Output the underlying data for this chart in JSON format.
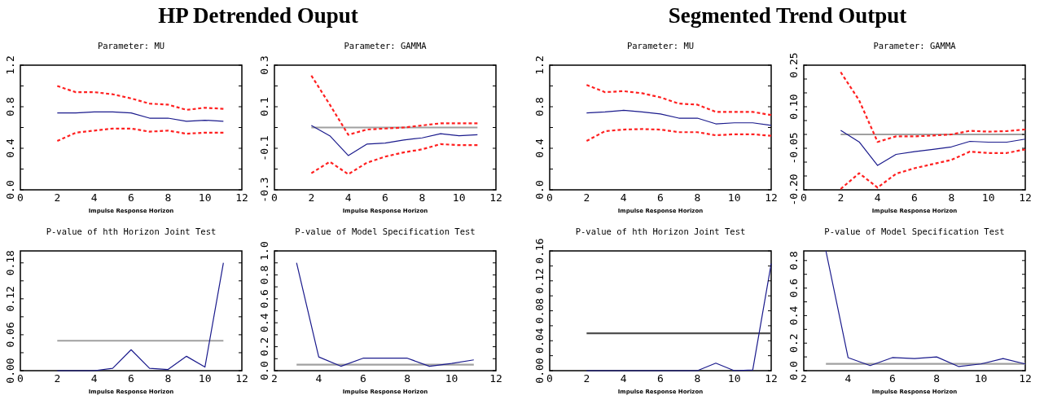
{
  "chart_data": [
    {
      "type": "line",
      "title": "Parameter: MU",
      "xlabel": "Impulse Response Horizon",
      "annotations": [
        "HP Detrended Ouput"
      ],
      "xlim": [
        0,
        12
      ],
      "xticks": [
        0,
        2,
        4,
        6,
        8,
        10,
        12
      ],
      "ylim": [
        0,
        1.2
      ],
      "yticks": [
        {
          "value": 0,
          "label": "0.0"
        },
        {
          "value": 0.2,
          "label": null
        },
        {
          "value": 0.4,
          "label": "0.4"
        },
        {
          "value": 0.6,
          "label": null
        },
        {
          "value": 0.8,
          "label": "0.8"
        },
        {
          "value": 1.0,
          "label": null
        },
        {
          "value": 1.2,
          "label": "1.2"
        }
      ],
      "series": [
        {
          "color": "#ff2020",
          "line_style": "dashed",
          "x": [
            2,
            3,
            4,
            5,
            6,
            7,
            8,
            9,
            10,
            11
          ],
          "values": [
            1.0,
            0.94,
            0.94,
            0.92,
            0.88,
            0.83,
            0.82,
            0.77,
            0.79,
            0.78
          ]
        },
        {
          "color": "#ff2020",
          "line_style": "dashed",
          "x": [
            2,
            3,
            4,
            5,
            6,
            7,
            8,
            9,
            10,
            11
          ],
          "values": [
            0.47,
            0.55,
            0.57,
            0.59,
            0.59,
            0.56,
            0.57,
            0.54,
            0.55,
            0.55
          ]
        },
        {
          "color": "#1a1a8c",
          "line_style": "solid",
          "x": [
            2,
            3,
            4,
            5,
            6,
            7,
            8,
            9,
            10,
            11
          ],
          "values": [
            0.74,
            0.74,
            0.75,
            0.75,
            0.74,
            0.69,
            0.69,
            0.66,
            0.67,
            0.66
          ]
        }
      ]
    },
    {
      "type": "line",
      "title": "Parameter: GAMMA",
      "xlabel": "Impulse Response Horizon",
      "xlim": [
        0,
        12
      ],
      "xticks": [
        0,
        2,
        4,
        6,
        8,
        10,
        12
      ],
      "ylim": [
        -0.3,
        0.3
      ],
      "yticks": [
        {
          "value": -0.3,
          "label": "-0.3"
        },
        {
          "value": -0.2,
          "label": null
        },
        {
          "value": -0.1,
          "label": "-0.1"
        },
        {
          "value": 0,
          "label": null
        },
        {
          "value": 0.1,
          "label": "0.1"
        },
        {
          "value": 0.2,
          "label": null
        },
        {
          "value": 0.3,
          "label": "0.3"
        }
      ],
      "series": [
        {
          "color": "#a0a0a0",
          "line_style": "solid",
          "x": [
            2,
            11
          ],
          "values": [
            0,
            0
          ]
        },
        {
          "color": "#ff2020",
          "line_style": "dashed",
          "x": [
            2,
            3,
            4,
            5,
            6,
            7,
            8,
            9,
            10,
            11
          ],
          "values": [
            0.25,
            0.11,
            -0.035,
            -0.01,
            -0.005,
            0.0,
            0.01,
            0.02,
            0.02,
            0.02
          ]
        },
        {
          "color": "#ff2020",
          "line_style": "dashed",
          "x": [
            2,
            3,
            4,
            5,
            6,
            7,
            8,
            9,
            10,
            11
          ],
          "values": [
            -0.22,
            -0.165,
            -0.225,
            -0.17,
            -0.14,
            -0.12,
            -0.105,
            -0.08,
            -0.085,
            -0.085
          ]
        },
        {
          "color": "#1a1a8c",
          "line_style": "solid",
          "x": [
            2,
            3,
            4,
            5,
            6,
            7,
            8,
            9,
            10,
            11
          ],
          "values": [
            0.01,
            -0.04,
            -0.135,
            -0.08,
            -0.075,
            -0.06,
            -0.05,
            -0.03,
            -0.04,
            -0.035
          ]
        }
      ]
    },
    {
      "type": "line",
      "title": "Parameter: MU",
      "xlabel": "Impulse Response Horizon",
      "annotations": [
        "Segmented Trend Output"
      ],
      "xlim": [
        0,
        12
      ],
      "xticks": [
        0,
        2,
        4,
        6,
        8,
        10,
        12
      ],
      "ylim": [
        0,
        1.2
      ],
      "yticks": [
        {
          "value": 0,
          "label": "0.0"
        },
        {
          "value": 0.2,
          "label": null
        },
        {
          "value": 0.4,
          "label": "0.4"
        },
        {
          "value": 0.6,
          "label": null
        },
        {
          "value": 0.8,
          "label": "0.8"
        },
        {
          "value": 1.0,
          "label": null
        },
        {
          "value": 1.2,
          "label": "1.2"
        }
      ],
      "series": [
        {
          "color": "#ff2020",
          "line_style": "dashed",
          "x": [
            2,
            3,
            4,
            5,
            6,
            7,
            8,
            9,
            10,
            11,
            12
          ],
          "values": [
            1.01,
            0.94,
            0.95,
            0.93,
            0.89,
            0.83,
            0.82,
            0.75,
            0.75,
            0.75,
            0.72
          ]
        },
        {
          "color": "#ff2020",
          "line_style": "dashed",
          "x": [
            2,
            3,
            4,
            5,
            6,
            7,
            8,
            9,
            10,
            11,
            12
          ],
          "values": [
            0.47,
            0.565,
            0.58,
            0.585,
            0.58,
            0.555,
            0.555,
            0.525,
            0.535,
            0.535,
            0.52
          ]
        },
        {
          "color": "#1a1a8c",
          "line_style": "solid",
          "x": [
            2,
            3,
            4,
            5,
            6,
            7,
            8,
            9,
            10,
            11,
            12
          ],
          "values": [
            0.74,
            0.75,
            0.765,
            0.75,
            0.73,
            0.69,
            0.69,
            0.635,
            0.645,
            0.645,
            0.62
          ]
        }
      ]
    },
    {
      "type": "line",
      "title": "Parameter: GAMMA",
      "xlabel": "Impulse Response Horizon",
      "xlim": [
        0,
        12
      ],
      "xticks": [
        0,
        2,
        4,
        6,
        8,
        10,
        12
      ],
      "ylim": [
        -0.2,
        0.25
      ],
      "yticks": [
        {
          "value": -0.2,
          "label": "-0.20"
        },
        {
          "value": -0.15,
          "label": null
        },
        {
          "value": -0.1,
          "label": null
        },
        {
          "value": -0.05,
          "label": "-0.05"
        },
        {
          "value": 0,
          "label": null
        },
        {
          "value": 0.05,
          "label": null
        },
        {
          "value": 0.1,
          "label": "0.10"
        },
        {
          "value": 0.15,
          "label": null
        },
        {
          "value": 0.2,
          "label": null
        },
        {
          "value": 0.25,
          "label": "0.25"
        }
      ],
      "series": [
        {
          "color": "#a0a0a0",
          "line_style": "solid",
          "x": [
            2,
            12
          ],
          "values": [
            0,
            0
          ]
        },
        {
          "color": "#ff2020",
          "line_style": "dashed",
          "x": [
            2,
            3,
            4,
            5,
            6,
            7,
            8,
            9,
            10,
            11,
            12
          ],
          "values": [
            0.225,
            0.123,
            -0.027,
            -0.007,
            -0.007,
            -0.004,
            0.0,
            0.013,
            0.01,
            0.012,
            0.018
          ]
        },
        {
          "color": "#ff2020",
          "line_style": "dashed",
          "x": [
            2,
            3,
            4,
            5,
            6,
            7,
            8,
            9,
            10,
            11,
            12
          ],
          "values": [
            -0.197,
            -0.14,
            -0.192,
            -0.142,
            -0.122,
            -0.107,
            -0.092,
            -0.062,
            -0.067,
            -0.067,
            -0.054
          ]
        },
        {
          "color": "#1a1a8c",
          "line_style": "solid",
          "x": [
            2,
            3,
            4,
            5,
            6,
            7,
            8,
            9,
            10,
            11,
            12
          ],
          "values": [
            0.015,
            -0.027,
            -0.112,
            -0.072,
            -0.062,
            -0.054,
            -0.045,
            -0.025,
            -0.028,
            -0.028,
            -0.017
          ]
        }
      ]
    },
    {
      "type": "line",
      "title": "P-value of hth Horizon Joint Test",
      "xlabel": "Impulse Response Horizon",
      "xlim": [
        0,
        12
      ],
      "xticks": [
        0,
        2,
        4,
        6,
        8,
        10,
        12
      ],
      "ylim": [
        0,
        0.2
      ],
      "yticks": [
        {
          "value": 0,
          "label": "0.00"
        },
        {
          "value": 0.03,
          "label": null
        },
        {
          "value": 0.06,
          "label": "0.06"
        },
        {
          "value": 0.09,
          "label": null
        },
        {
          "value": 0.12,
          "label": "0.12"
        },
        {
          "value": 0.15,
          "label": null
        },
        {
          "value": 0.18,
          "label": "0.18"
        }
      ],
      "series": [
        {
          "color": "#a0a0a0",
          "line_style": "solid",
          "x": [
            2,
            11
          ],
          "values": [
            0.05,
            0.05
          ]
        },
        {
          "color": "#1a1a8c",
          "line_style": "solid",
          "x": [
            2,
            3,
            4,
            5,
            6,
            7,
            8,
            9,
            10,
            11
          ],
          "values": [
            0,
            0,
            0,
            0.004,
            0.035,
            0.004,
            0.002,
            0.024,
            0.006,
            0.18
          ]
        }
      ]
    },
    {
      "type": "line",
      "title": "P-value of Model Specification Test",
      "xlabel": "Impulse Response Horizon",
      "xlim": [
        2,
        12
      ],
      "xticks": [
        2,
        4,
        6,
        8,
        10,
        12
      ],
      "ylim": [
        0,
        1
      ],
      "yticks": [
        {
          "value": 0,
          "label": "0.0"
        },
        {
          "value": 0.1,
          "label": null
        },
        {
          "value": 0.2,
          "label": "0.2"
        },
        {
          "value": 0.3,
          "label": null
        },
        {
          "value": 0.4,
          "label": "0.4"
        },
        {
          "value": 0.5,
          "label": null
        },
        {
          "value": 0.6,
          "label": "0.6"
        },
        {
          "value": 0.7,
          "label": null
        },
        {
          "value": 0.8,
          "label": "0.8"
        },
        {
          "value": 0.9,
          "label": null
        },
        {
          "value": 1.0,
          "label": "1.0"
        }
      ],
      "series": [
        {
          "color": "#a0a0a0",
          "line_style": "solid",
          "x": [
            3,
            11
          ],
          "values": [
            0.05,
            0.05
          ]
        },
        {
          "color": "#1a1a8c",
          "line_style": "solid",
          "x": [
            3,
            4,
            5,
            6,
            7,
            8,
            9,
            10,
            11
          ],
          "values": [
            0.9,
            0.115,
            0.037,
            0.104,
            0.104,
            0.104,
            0.037,
            0.06,
            0.09
          ]
        }
      ]
    },
    {
      "type": "line",
      "title": "P-value of hth Horizon Joint Test",
      "xlabel": "Impulse Response Horizon",
      "xlim": [
        0,
        12
      ],
      "xticks": [
        0,
        2,
        4,
        6,
        8,
        10,
        12
      ],
      "ylim": [
        0,
        0.16
      ],
      "yticks": [
        {
          "value": 0,
          "label": "0.00"
        },
        {
          "value": 0.02,
          "label": null
        },
        {
          "value": 0.04,
          "label": "0.04"
        },
        {
          "value": 0.06,
          "label": null
        },
        {
          "value": 0.08,
          "label": "0.08"
        },
        {
          "value": 0.1,
          "label": null
        },
        {
          "value": 0.12,
          "label": "0.12"
        },
        {
          "value": 0.14,
          "label": null
        },
        {
          "value": 0.16,
          "label": "0.16"
        }
      ],
      "series": [
        {
          "color": "#505050",
          "line_style": "solid",
          "x": [
            2,
            12
          ],
          "values": [
            0.05,
            0.05
          ]
        },
        {
          "color": "#1a1a8c",
          "line_style": "solid",
          "x": [
            2,
            3,
            4,
            5,
            6,
            7,
            8,
            9,
            10,
            11,
            12
          ],
          "values": [
            0,
            0,
            0,
            0,
            0,
            0,
            0,
            0.01,
            0,
            0.001,
            0.143
          ]
        }
      ]
    },
    {
      "type": "line",
      "title": "P-value of Model Specification Test",
      "xlabel": "Impulse Response Horizon",
      "xlim": [
        2,
        12
      ],
      "xticks": [
        2,
        4,
        6,
        8,
        10,
        12
      ],
      "ylim": [
        0,
        0.87
      ],
      "yticks": [
        {
          "value": 0,
          "label": "0.0"
        },
        {
          "value": 0.1,
          "label": null
        },
        {
          "value": 0.2,
          "label": "0.2"
        },
        {
          "value": 0.3,
          "label": null
        },
        {
          "value": 0.4,
          "label": "0.4"
        },
        {
          "value": 0.5,
          "label": null
        },
        {
          "value": 0.6,
          "label": "0.6"
        },
        {
          "value": 0.7,
          "label": null
        },
        {
          "value": 0.8,
          "label": "0.8"
        }
      ],
      "series": [
        {
          "color": "#a0a0a0",
          "line_style": "solid",
          "x": [
            3,
            12
          ],
          "values": [
            0.05,
            0.05
          ]
        },
        {
          "color": "#1a1a8c",
          "line_style": "solid",
          "x": [
            3,
            4,
            5,
            6,
            7,
            8,
            9,
            10,
            11,
            12
          ],
          "values": [
            0.87,
            0.095,
            0.037,
            0.095,
            0.088,
            0.1,
            0.03,
            0.049,
            0.088,
            0.049
          ]
        }
      ]
    }
  ]
}
